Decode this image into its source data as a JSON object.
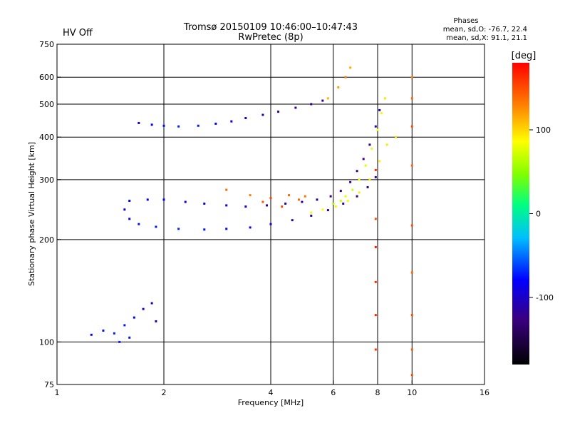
{
  "header": {
    "status": "HV Off",
    "status_color": "#cc0000",
    "title_line1": "Tromsø 20150109 10:46:00–10:47:43",
    "title_line2": "RwPretec (8p)"
  },
  "stats": {
    "title": "Phases",
    "line_o": "mean, sd,O: -76.7, 22.4",
    "line_x": "mean, sd,X:  91.1, 21.1"
  },
  "colorbar": {
    "unit": "[deg]",
    "ticks": [
      "100",
      "0",
      "-100"
    ],
    "tick_values": [
      100,
      0,
      -100
    ],
    "range": [
      -180,
      180
    ]
  },
  "chart_data": {
    "type": "scatter",
    "title": "Tromsø 20150109 10:46:00–10:47:43",
    "subtitle": "RwPretec (8p)",
    "xlabel": "Frequency [MHz]",
    "ylabel": "Stationary phase Virtual Height [km]",
    "x_scale": "log",
    "y_scale": "log",
    "xlim": [
      1,
      16
    ],
    "ylim": [
      75,
      750
    ],
    "x_ticks": [
      1,
      2,
      4,
      6,
      8,
      10,
      16
    ],
    "x_tick_labels": [
      "1",
      "2",
      "4",
      "6",
      "8",
      "10",
      "16"
    ],
    "y_ticks": [
      75,
      100,
      200,
      300,
      400,
      500,
      600,
      750
    ],
    "y_tick_labels": [
      "75",
      "100",
      "200",
      "300",
      "400",
      "500",
      "600",
      "750"
    ],
    "x_gridlines": [
      2,
      4,
      6,
      8,
      10
    ],
    "y_gridlines": [
      100,
      200,
      300,
      400,
      500,
      600
    ],
    "grid": true,
    "color_variable": "phase [deg]",
    "series": [
      {
        "points": [
          [
            1.7,
            440,
            -90
          ],
          [
            1.85,
            435,
            -80
          ],
          [
            2.0,
            432,
            -75
          ],
          [
            2.2,
            430,
            -70
          ],
          [
            2.5,
            432,
            -72
          ],
          [
            2.8,
            438,
            -80
          ],
          [
            3.1,
            445,
            -90
          ],
          [
            3.4,
            455,
            -100
          ],
          [
            3.8,
            465,
            -110
          ],
          [
            4.2,
            475,
            -115
          ],
          [
            4.7,
            488,
            -118
          ],
          [
            5.2,
            500,
            -120
          ],
          [
            5.6,
            512,
            -115
          ],
          [
            1.6,
            260,
            -80
          ],
          [
            1.8,
            262,
            -85
          ],
          [
            2.0,
            262,
            -80
          ],
          [
            2.3,
            258,
            -90
          ],
          [
            2.6,
            255,
            -85
          ],
          [
            3.0,
            252,
            -95
          ],
          [
            3.4,
            250,
            -100
          ],
          [
            3.9,
            252,
            -110
          ],
          [
            4.4,
            255,
            -105
          ],
          [
            4.9,
            258,
            -115
          ],
          [
            5.4,
            262,
            -110
          ],
          [
            5.9,
            268,
            -120
          ],
          [
            6.3,
            278,
            -118
          ],
          [
            6.7,
            295,
            -120
          ],
          [
            7.0,
            318,
            -125
          ],
          [
            7.3,
            345,
            -120
          ],
          [
            7.6,
            380,
            -115
          ],
          [
            7.9,
            430,
            -110
          ],
          [
            8.1,
            480,
            -105
          ],
          [
            1.55,
            245,
            -85
          ],
          [
            1.6,
            230,
            -80
          ],
          [
            1.7,
            222,
            -75
          ],
          [
            1.9,
            218,
            -72
          ],
          [
            2.2,
            215,
            -70
          ],
          [
            2.6,
            214,
            -75
          ],
          [
            3.0,
            215,
            -80
          ],
          [
            3.5,
            217,
            -90
          ],
          [
            4.0,
            222,
            -100
          ],
          [
            4.6,
            228,
            -110
          ],
          [
            5.2,
            235,
            -115
          ],
          [
            5.8,
            244,
            -118
          ],
          [
            6.4,
            255,
            -120
          ],
          [
            7.0,
            268,
            -122
          ],
          [
            7.5,
            285,
            -120
          ],
          [
            7.9,
            305,
            -118
          ],
          [
            1.25,
            105,
            -80
          ],
          [
            1.35,
            108,
            -75
          ],
          [
            1.45,
            106,
            -70
          ],
          [
            1.55,
            112,
            -72
          ],
          [
            1.65,
            118,
            -80
          ],
          [
            1.75,
            125,
            -90
          ],
          [
            1.85,
            130,
            -95
          ],
          [
            1.5,
            100,
            -70
          ],
          [
            1.6,
            103,
            -75
          ],
          [
            1.9,
            115,
            -100
          ]
        ]
      },
      {
        "points": [
          [
            3.0,
            280,
            140
          ],
          [
            3.5,
            270,
            130
          ],
          [
            4.0,
            265,
            150
          ],
          [
            4.5,
            270,
            140
          ],
          [
            5.0,
            268,
            135
          ],
          [
            3.8,
            258,
            145
          ],
          [
            4.3,
            250,
            150
          ],
          [
            4.8,
            262,
            140
          ],
          [
            6.0,
            255,
            60
          ],
          [
            6.3,
            260,
            70
          ],
          [
            6.5,
            268,
            80
          ],
          [
            6.8,
            280,
            70
          ],
          [
            7.1,
            300,
            80
          ],
          [
            7.4,
            330,
            75
          ],
          [
            7.7,
            370,
            80
          ],
          [
            8.0,
            420,
            85
          ],
          [
            8.2,
            470,
            90
          ],
          [
            8.4,
            520,
            95
          ],
          [
            5.2,
            240,
            80
          ],
          [
            5.6,
            245,
            85
          ],
          [
            6.1,
            250,
            90
          ],
          [
            6.6,
            260,
            88
          ],
          [
            7.1,
            275,
            92
          ],
          [
            7.6,
            300,
            95
          ],
          [
            8.1,
            340,
            92
          ],
          [
            8.5,
            380,
            95
          ],
          [
            9.0,
            400,
            100
          ],
          [
            5.8,
            520,
            110
          ],
          [
            6.2,
            560,
            120
          ],
          [
            6.5,
            600,
            130
          ],
          [
            6.7,
            640,
            115
          ],
          [
            10.0,
            600,
            130
          ],
          [
            10.0,
            520,
            140
          ],
          [
            10.0,
            430,
            150
          ],
          [
            10.0,
            330,
            140
          ],
          [
            10.0,
            220,
            150
          ],
          [
            10.0,
            160,
            140
          ],
          [
            10.0,
            120,
            150
          ],
          [
            10.0,
            95,
            145
          ],
          [
            10.0,
            80,
            150
          ],
          [
            7.9,
            320,
            160
          ],
          [
            7.9,
            230,
            150
          ],
          [
            7.9,
            190,
            170
          ],
          [
            7.9,
            150,
            160
          ],
          [
            7.9,
            120,
            165
          ],
          [
            7.9,
            95,
            160
          ]
        ]
      }
    ]
  }
}
